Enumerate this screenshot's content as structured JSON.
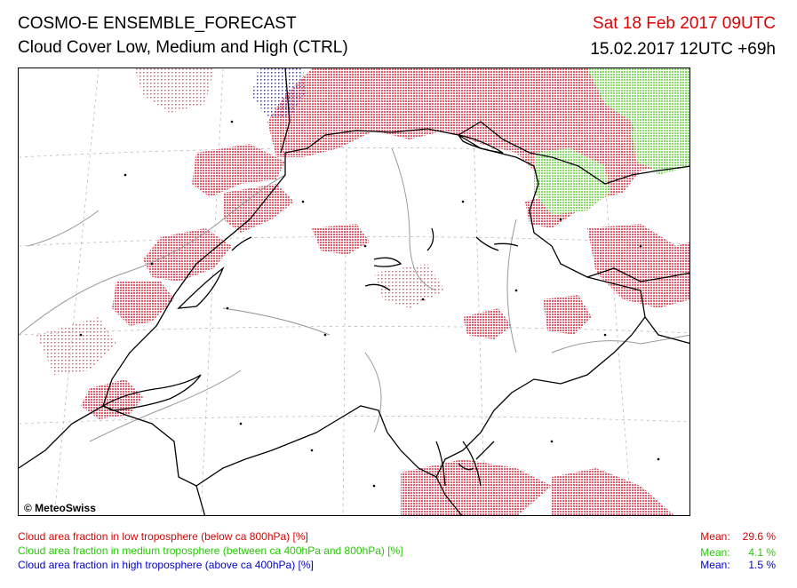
{
  "header": {
    "title_line1": "COSMO-E ENSEMBLE_FORECAST",
    "title_line2": "Cloud Cover Low, Medium and High (CTRL)",
    "valid_time": "Sat 18 Feb 2017 09UTC",
    "run_time": "15.02.2017 12UTC +69h"
  },
  "map": {
    "copyright": "© MeteoSwiss"
  },
  "legend": [
    {
      "label": "Cloud area fraction in low troposphere (below ca 800hPa) [%]",
      "mean_label": "Mean:",
      "mean_value": "29.6 %",
      "color": "#e00000"
    },
    {
      "label": "Cloud area fraction in medium troposphere (between ca 400hPa and 800hPa) [%]",
      "mean_label": "Mean:",
      "mean_value": "4.1 %",
      "color": "#22cc00"
    },
    {
      "label": "Cloud area fraction in high troposphere (above ca 400hPa) [%]",
      "mean_label": "Mean:",
      "mean_value": "1.5 %",
      "color": "#0000dd"
    }
  ]
}
